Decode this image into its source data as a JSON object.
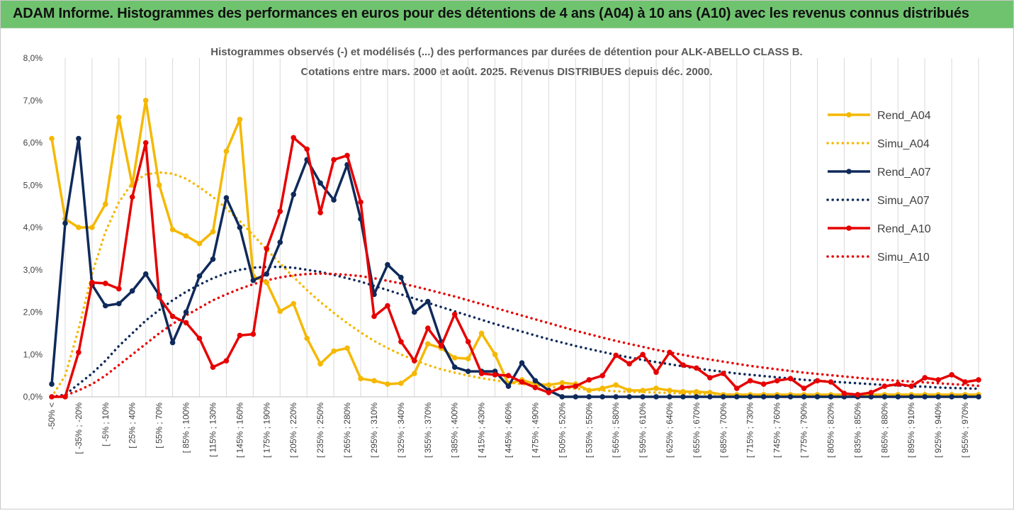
{
  "banner": {
    "title": "ADAM Informe. Histogrammes des performances en euros pour des détentions de 4 ans (A04) à 10 ans (A10) avec les revenus connus distribués"
  },
  "chart_data": {
    "type": "line",
    "title_line1": "Histogrammes observés (-) et modélisés (...) des performances par durées de détention pour ALK-ABELLO CLASS B.",
    "title_line2": "Cotations entre mars. 2000 et août. 2025. Revenus DISTRIBUES depuis déc. 2000.",
    "y_ticks": [
      "0,0%",
      "1,0%",
      "2,0%",
      "3,0%",
      "4,0%",
      "5,0%",
      "6,0%",
      "7,0%",
      "8,0%"
    ],
    "ylim": [
      0,
      8
    ],
    "x_tick_labels": [
      "-50% <",
      "[ -35% ; -20%",
      "[ -5% ; 10%",
      "[ 25% ; 40%",
      "[ 55% ; 70%",
      "[ 85% ; 100%",
      "[ 115% ; 130%",
      "[ 145% ; 160%",
      "[ 175% ; 190%",
      "[ 205% ; 220%",
      "[ 235% ; 250%",
      "[ 265% ; 280%",
      "[ 295% ; 310%",
      "[ 325% ; 340%",
      "[ 355% ; 370%",
      "[ 385% ; 400%",
      "[ 415% ; 430%",
      "[ 445% ; 460%",
      "[ 475% ; 490%",
      "[ 505% ; 520%",
      "[ 535% ; 550%",
      "[ 565% ; 580%",
      "[ 595% ; 610%",
      "[ 625% ; 640%",
      "[ 655% ; 670%",
      "[ 685% ; 700%",
      "[ 715% ; 730%",
      "[ 745% ; 760%",
      "[ 775% ; 790%",
      "[ 805% ; 820%",
      "[ 835% ; 850%",
      "[ 865% ; 880%",
      "[ 895% ; 910%",
      "[ 925% ; 940%",
      "[ 955% ; 970%"
    ],
    "grid": "vertical",
    "legend_position": "right",
    "series": [
      {
        "name": "Rend_A04",
        "style": "solid",
        "color": "#f5b800",
        "values": [
          6.1,
          4.2,
          4.0,
          4.0,
          4.55,
          6.6,
          5.0,
          7.0,
          5.0,
          3.95,
          3.8,
          3.62,
          3.9,
          5.8,
          6.55,
          2.85,
          2.7,
          2.02,
          2.2,
          1.38,
          0.78,
          1.08,
          1.15,
          0.43,
          0.38,
          0.3,
          0.32,
          0.55,
          1.25,
          1.15,
          0.92,
          0.9,
          1.5,
          1.0,
          0.3,
          0.4,
          0.3,
          0.28,
          0.33,
          0.3,
          0.15,
          0.2,
          0.28,
          0.15,
          0.15,
          0.2,
          0.15,
          0.12,
          0.12,
          0.1,
          0.05,
          0.05,
          0.05,
          0.05,
          0.05,
          0.05,
          0.05,
          0.05,
          0.05,
          0.05,
          0.05,
          0.05,
          0.05,
          0.05,
          0.05,
          0.05,
          0.05,
          0.05,
          0.05,
          0.05
        ]
      },
      {
        "name": "Simu_A04",
        "style": "dotted",
        "color": "#f5b800",
        "values": [
          0.0,
          0.5,
          1.6,
          2.9,
          3.9,
          4.6,
          5.05,
          5.25,
          5.3,
          5.27,
          5.15,
          4.95,
          4.72,
          4.45,
          4.15,
          3.82,
          3.48,
          3.15,
          2.83,
          2.52,
          2.24,
          1.98,
          1.74,
          1.52,
          1.32,
          1.15,
          1.0,
          0.87,
          0.75,
          0.65,
          0.57,
          0.5,
          0.44,
          0.39,
          0.34,
          0.3,
          0.27,
          0.24,
          0.21,
          0.19,
          0.17,
          0.15,
          0.13,
          0.12,
          0.11,
          0.1,
          0.09,
          0.08,
          0.07,
          0.06,
          0.06,
          0.05,
          0.05,
          0.04,
          0.04,
          0.03,
          0.03,
          0.03,
          0.02,
          0.02,
          0.02,
          0.02,
          0.02,
          0.01,
          0.01,
          0.01,
          0.01,
          0.01,
          0.01,
          0.01
        ]
      },
      {
        "name": "Rend_A07",
        "style": "solid",
        "color": "#0f2a5a",
        "values": [
          0.3,
          4.1,
          6.1,
          2.65,
          2.15,
          2.2,
          2.5,
          2.9,
          2.4,
          1.28,
          2.0,
          2.85,
          3.25,
          4.7,
          4.0,
          2.75,
          2.9,
          3.65,
          4.78,
          5.6,
          5.05,
          4.65,
          5.48,
          4.2,
          2.42,
          3.12,
          2.82,
          2.0,
          2.25,
          1.3,
          0.7,
          0.6,
          0.6,
          0.6,
          0.25,
          0.8,
          0.38,
          0.15,
          0.0,
          0.0,
          0.0,
          0.0,
          0.0,
          0.0,
          0.0,
          0.0,
          0.0,
          0.0,
          0.0,
          0.0,
          0.0,
          0.0,
          0.0,
          0.0,
          0.0,
          0.0,
          0.0,
          0.0,
          0.0,
          0.0,
          0.0,
          0.0,
          0.0,
          0.0,
          0.0,
          0.0,
          0.0,
          0.0,
          0.0,
          0.0
        ]
      },
      {
        "name": "Simu_A07",
        "style": "dotted",
        "color": "#0f2a5a",
        "values": [
          0.0,
          0.05,
          0.3,
          0.55,
          0.85,
          1.2,
          1.5,
          1.8,
          2.05,
          2.28,
          2.48,
          2.65,
          2.8,
          2.92,
          3.0,
          3.05,
          3.07,
          3.07,
          3.05,
          3.0,
          2.95,
          2.88,
          2.8,
          2.72,
          2.62,
          2.52,
          2.42,
          2.32,
          2.22,
          2.12,
          2.02,
          1.92,
          1.82,
          1.72,
          1.63,
          1.54,
          1.45,
          1.36,
          1.28,
          1.2,
          1.13,
          1.06,
          0.99,
          0.93,
          0.87,
          0.82,
          0.77,
          0.72,
          0.67,
          0.63,
          0.59,
          0.55,
          0.52,
          0.49,
          0.46,
          0.43,
          0.4,
          0.38,
          0.36,
          0.34,
          0.32,
          0.3,
          0.28,
          0.27,
          0.25,
          0.24,
          0.22,
          0.21,
          0.2,
          0.19
        ]
      },
      {
        "name": "Rend_A10",
        "style": "solid",
        "color": "#e60000",
        "values": [
          0.0,
          0.0,
          1.05,
          2.7,
          2.68,
          2.55,
          4.72,
          6.0,
          2.35,
          1.9,
          1.75,
          1.38,
          0.7,
          0.85,
          1.45,
          1.48,
          3.5,
          4.38,
          6.12,
          5.85,
          4.35,
          5.6,
          5.7,
          4.6,
          1.9,
          2.15,
          1.3,
          0.85,
          1.62,
          1.2,
          1.95,
          1.3,
          0.55,
          0.52,
          0.5,
          0.35,
          0.22,
          0.1,
          0.22,
          0.25,
          0.4,
          0.5,
          0.98,
          0.78,
          1.0,
          0.58,
          1.05,
          0.75,
          0.68,
          0.45,
          0.55,
          0.2,
          0.38,
          0.3,
          0.38,
          0.43,
          0.2,
          0.38,
          0.35,
          0.08,
          0.05,
          0.1,
          0.25,
          0.3,
          0.25,
          0.45,
          0.4,
          0.52,
          0.35,
          0.4
        ]
      },
      {
        "name": "Simu_A10",
        "style": "dotted",
        "color": "#e60000",
        "values": [
          0.0,
          0.03,
          0.15,
          0.3,
          0.5,
          0.75,
          1.0,
          1.25,
          1.5,
          1.72,
          1.92,
          2.1,
          2.28,
          2.42,
          2.55,
          2.66,
          2.75,
          2.82,
          2.87,
          2.9,
          2.91,
          2.9,
          2.88,
          2.85,
          2.8,
          2.74,
          2.68,
          2.61,
          2.53,
          2.45,
          2.37,
          2.28,
          2.19,
          2.1,
          2.01,
          1.92,
          1.83,
          1.74,
          1.65,
          1.56,
          1.48,
          1.4,
          1.32,
          1.25,
          1.18,
          1.11,
          1.05,
          0.99,
          0.93,
          0.88,
          0.83,
          0.78,
          0.73,
          0.69,
          0.65,
          0.61,
          0.57,
          0.54,
          0.51,
          0.48,
          0.45,
          0.42,
          0.4,
          0.38,
          0.36,
          0.34,
          0.32,
          0.3,
          0.28,
          0.26
        ]
      }
    ]
  }
}
